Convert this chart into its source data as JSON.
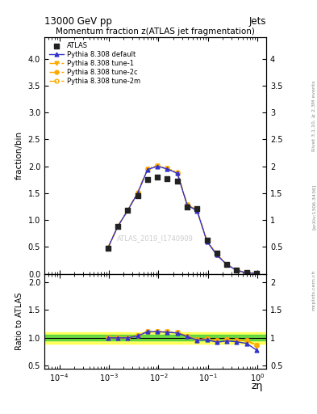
{
  "title_top_left": "13000 GeV pp",
  "title_top_right": "Jets",
  "plot_title": "Momentum fraction z(ATLAS jet fragmentation)",
  "xlabel": "zη",
  "ylabel_main": "fraction/bin",
  "ylabel_ratio": "Ratio to ATLAS",
  "watermark": "ATLAS_2019_I1740909",
  "right_label_top": "Rivet 3.1.10, ≥ 2.3M events",
  "right_label_bottom": "[arXiv:1306.3436]",
  "right_label_site": "mcplots.cern.ch",
  "xlim": [
    5e-05,
    1.5
  ],
  "ylim_main": [
    0,
    4.4
  ],
  "ylim_ratio": [
    0.45,
    2.15
  ],
  "x_data": [
    0.000955,
    0.00151,
    0.0024,
    0.0038,
    0.00603,
    0.00955,
    0.0151,
    0.024,
    0.038,
    0.0603,
    0.0955,
    0.151,
    0.24,
    0.38,
    0.603,
    0.955
  ],
  "atlas_y": [
    0.48,
    0.88,
    1.18,
    1.45,
    1.75,
    1.8,
    1.77,
    1.72,
    1.25,
    1.22,
    0.62,
    0.38,
    0.18,
    0.07,
    0.02,
    0.005
  ],
  "pythia_default_y": [
    0.48,
    0.88,
    1.18,
    1.5,
    1.94,
    2.0,
    1.95,
    1.87,
    1.28,
    1.17,
    0.6,
    0.35,
    0.17,
    0.065,
    0.018,
    0.004
  ],
  "pythia_tune1_y": [
    0.48,
    0.88,
    1.18,
    1.5,
    1.95,
    2.01,
    1.96,
    1.88,
    1.29,
    1.18,
    0.61,
    0.36,
    0.175,
    0.067,
    0.019,
    0.004
  ],
  "pythia_tune2c_y": [
    0.48,
    0.88,
    1.18,
    1.51,
    1.95,
    2.01,
    1.96,
    1.88,
    1.29,
    1.18,
    0.61,
    0.36,
    0.175,
    0.067,
    0.019,
    0.004
  ],
  "pythia_tune2m_y": [
    0.485,
    0.885,
    1.185,
    1.51,
    1.95,
    2.01,
    1.96,
    1.885,
    1.29,
    1.18,
    0.61,
    0.36,
    0.175,
    0.067,
    0.019,
    0.004
  ],
  "ratio_default": [
    1.0,
    1.0,
    1.0,
    1.034,
    1.11,
    1.11,
    1.1,
    1.087,
    1.024,
    0.959,
    0.968,
    0.921,
    0.944,
    0.929,
    0.9,
    0.78
  ],
  "ratio_tune1": [
    1.0,
    1.0,
    1.0,
    1.034,
    1.114,
    1.117,
    1.107,
    1.093,
    1.032,
    0.967,
    0.984,
    0.947,
    0.972,
    0.957,
    0.95,
    0.87
  ],
  "ratio_tune2c": [
    1.0,
    1.0,
    1.0,
    1.041,
    1.114,
    1.117,
    1.107,
    1.093,
    1.032,
    0.967,
    0.984,
    0.947,
    0.972,
    0.957,
    0.95,
    0.87
  ],
  "ratio_tune2m": [
    1.01,
    1.006,
    1.004,
    1.041,
    1.114,
    1.117,
    1.107,
    1.096,
    1.032,
    0.967,
    0.984,
    0.947,
    0.972,
    0.957,
    0.95,
    0.87
  ],
  "color_atlas": "#222222",
  "color_default": "#3333cc",
  "color_tune1": "#ffaa00",
  "color_tune2c": "#ffaa00",
  "color_tune2m": "#ffaa00",
  "band_yellow": "#ffff00",
  "band_green": "#33cc33",
  "band_alpha_yellow": 0.6,
  "band_alpha_green": 0.7
}
